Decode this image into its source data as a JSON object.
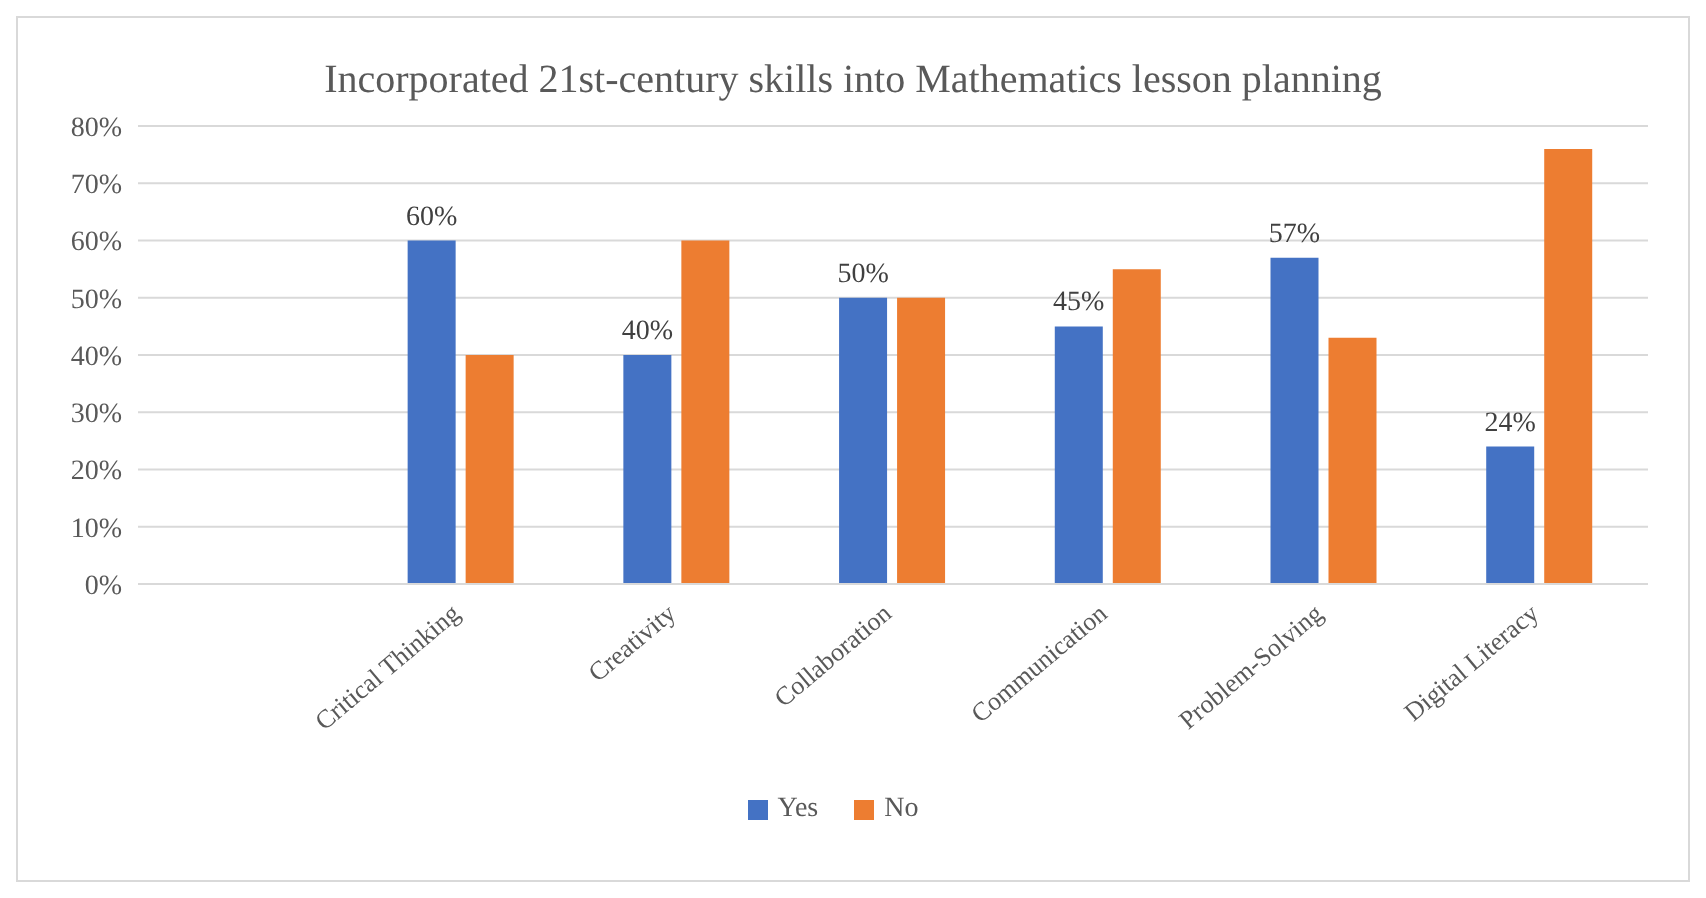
{
  "chart_data": {
    "type": "bar",
    "title": "Incorporated 21st-century skills into Mathematics lesson planning",
    "categories": [
      null,
      "Critical Thinking",
      "Creativity",
      "Collaboration",
      "Communication",
      "Problem-Solving",
      "Digital Literacy"
    ],
    "series": [
      {
        "name": "Yes",
        "color": "#4472c4",
        "values": [
          null,
          60,
          40,
          50,
          45,
          57,
          24
        ],
        "value_labels": [
          null,
          "60%",
          "40%",
          "50%",
          "45%",
          "57%",
          "24%"
        ]
      },
      {
        "name": "No",
        "color": "#ed7d31",
        "values": [
          null,
          40,
          60,
          50,
          55,
          43,
          76
        ]
      }
    ],
    "ylim": [
      0,
      80
    ],
    "yticks": [
      {
        "value": 0,
        "label": "0%"
      },
      {
        "value": 10,
        "label": "10%"
      },
      {
        "value": 20,
        "label": "20%"
      },
      {
        "value": 30,
        "label": "30%"
      },
      {
        "value": 40,
        "label": "40%"
      },
      {
        "value": 50,
        "label": "50%"
      },
      {
        "value": 60,
        "label": "60%"
      },
      {
        "value": 70,
        "label": "70%"
      },
      {
        "value": 80,
        "label": "80%"
      }
    ],
    "grid": "y",
    "legend": "bottom"
  }
}
